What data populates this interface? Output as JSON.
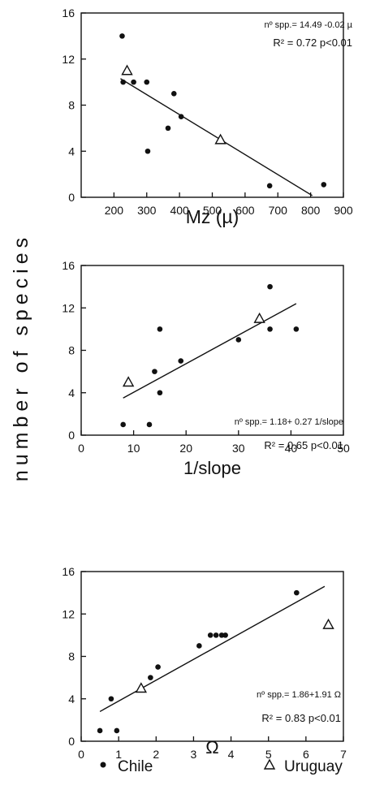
{
  "shared_ylabel": "number of species",
  "legend": {
    "chile": "Chile",
    "uruguay": "Uruguay"
  },
  "chart_data": [
    {
      "type": "scatter",
      "xlabel": "Mz (µ)",
      "xlim": [
        100,
        900
      ],
      "ylim": [
        0,
        16
      ],
      "xticks": [
        200,
        300,
        400,
        500,
        600,
        700,
        800,
        900
      ],
      "yticks": [
        0,
        4,
        8,
        12,
        16
      ],
      "annotation": [
        "nº spp.= 14.49 -0.02 µ",
        "R² = 0.72 p<0.01"
      ],
      "series": [
        {
          "name": "Chile",
          "marker": "dot",
          "x": [
            225,
            228,
            260,
            300,
            303,
            365,
            383,
            405,
            675,
            840
          ],
          "y": [
            14,
            10,
            10,
            10,
            4,
            6,
            9,
            7,
            1,
            1.1
          ]
        },
        {
          "name": "Uruguay",
          "marker": "triangle",
          "x": [
            240,
            525
          ],
          "y": [
            11,
            5
          ]
        }
      ],
      "fit_line": {
        "x": [
          220,
          805
        ],
        "y": [
          10.3,
          0.15
        ]
      }
    },
    {
      "type": "scatter",
      "xlabel": "1/slope",
      "xlim": [
        0,
        50
      ],
      "ylim": [
        0,
        16
      ],
      "xticks": [
        0,
        10,
        20,
        30,
        40,
        50
      ],
      "yticks": [
        0,
        4,
        8,
        12,
        16
      ],
      "annotation": [
        "nº spp.= 1.18+ 0.27 1/slope",
        "R² = 0.65 p<0.01"
      ],
      "series": [
        {
          "name": "Chile",
          "marker": "dot",
          "x": [
            8,
            13,
            14,
            15,
            15,
            19,
            30,
            36,
            36,
            41
          ],
          "y": [
            1,
            1,
            6,
            10,
            4,
            7,
            9,
            14,
            10,
            10
          ]
        },
        {
          "name": "Uruguay",
          "marker": "triangle",
          "x": [
            9,
            34
          ],
          "y": [
            5,
            11
          ]
        }
      ],
      "fit_line": {
        "x": [
          8,
          41
        ],
        "y": [
          3.5,
          12.4
        ]
      }
    },
    {
      "type": "scatter",
      "xlabel": "Ω",
      "xlim": [
        0,
        7
      ],
      "ylim": [
        0,
        16
      ],
      "xticks": [
        0,
        1,
        2,
        3,
        4,
        5,
        6,
        7
      ],
      "yticks": [
        0,
        4,
        8,
        12,
        16
      ],
      "annotation": [
        "nº spp.= 1.86+1.91 Ω",
        "R² = 0.83 p<0.01"
      ],
      "series": [
        {
          "name": "Chile",
          "marker": "dot",
          "x": [
            0.5,
            0.8,
            0.95,
            1.85,
            2.05,
            3.15,
            3.45,
            3.6,
            3.75,
            3.85,
            5.75
          ],
          "y": [
            1,
            4,
            1,
            6,
            7,
            9,
            10,
            10,
            10,
            10,
            14
          ]
        },
        {
          "name": "Uruguay",
          "marker": "triangle",
          "x": [
            1.6,
            6.6
          ],
          "y": [
            5,
            11
          ]
        }
      ],
      "fit_line": {
        "x": [
          0.5,
          6.5
        ],
        "y": [
          2.8,
          14.6
        ]
      }
    }
  ]
}
